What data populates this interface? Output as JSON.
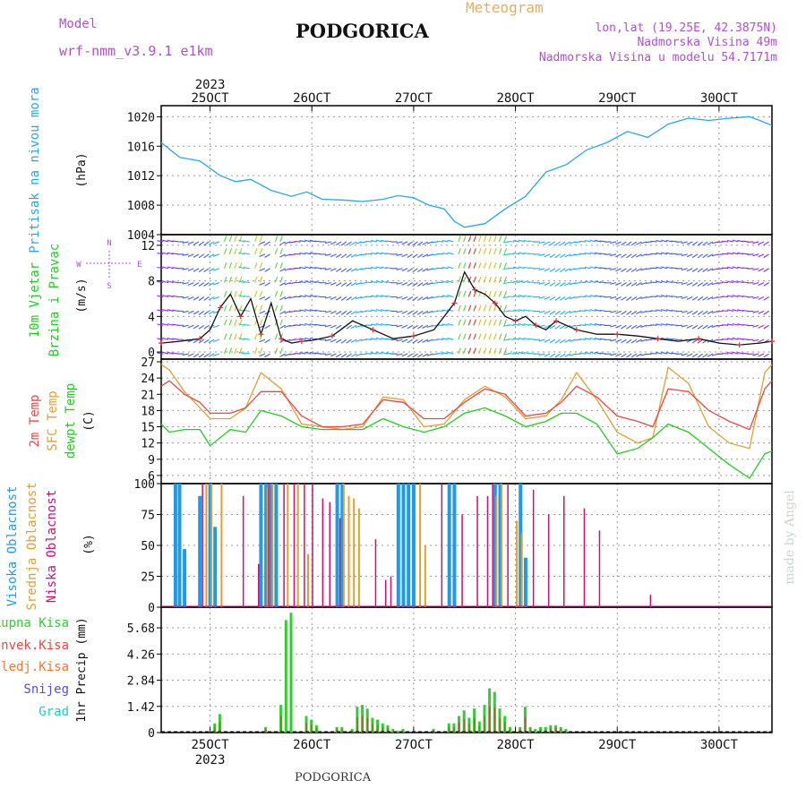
{
  "header": {
    "model_label": "Model",
    "model_name": "wrf-nmm_v3.9.1 e1km",
    "title": "PODGORICA",
    "meteogram_label": "Meteogram",
    "coords": "lon,lat (19.25E, 42.3875N)",
    "elevation": "Nadmorska Visina 49m",
    "model_elevation": "Nadmorska Visina u modelu 54.7171m",
    "footer_title": "PODGORICA",
    "credit": "made by Angel"
  },
  "colors": {
    "pressure": "#29a8e0",
    "temp2m": "#e84848",
    "sfc_temp": "#e0a030",
    "dewpt": "#22cc22",
    "high_cloud": "#1e9be8",
    "mid_cloud": "#e0a030",
    "low_cloud": "#c8127a",
    "total_precip": "#33cc33",
    "conv_precip": "#e84848",
    "frozen_precip": "#f07830",
    "snow": "#5050dd",
    "grad": "#22cccc",
    "header_purple": "#b050d0",
    "header_gold": "#e0b060"
  },
  "x_axis": {
    "top_year": "2023",
    "bottom_year": "2023",
    "ticks": [
      {
        "day": 25,
        "label": "25OCT"
      },
      {
        "day": 26,
        "label": "26OCT"
      },
      {
        "day": 27,
        "label": "27OCT"
      },
      {
        "day": 28,
        "label": "28OCT"
      },
      {
        "day": 29,
        "label": "29OCT"
      },
      {
        "day": 30,
        "label": "30OCT"
      }
    ],
    "range_days": [
      24.52,
      30.52
    ]
  },
  "chart_data": [
    {
      "type": "line",
      "name": "pressure",
      "ylabel_left": "Pritisak na nivou mora",
      "ylabel_unit": "(hPa)",
      "ylim": [
        1004,
        1021.5
      ],
      "yticks": [
        1004,
        1008,
        1012,
        1016,
        1020
      ],
      "grid": true,
      "series": [
        {
          "name": "pressure",
          "x": [
            24.52,
            24.7,
            24.9,
            25.1,
            25.25,
            25.4,
            25.6,
            25.8,
            25.95,
            26.1,
            26.3,
            26.5,
            26.7,
            26.85,
            27.0,
            27.15,
            27.3,
            27.4,
            27.5,
            27.7,
            27.9,
            28.1,
            28.3,
            28.5,
            28.7,
            28.9,
            29.1,
            29.3,
            29.5,
            29.7,
            29.9,
            30.1,
            30.3,
            30.4,
            30.52
          ],
          "values": [
            1016.5,
            1014.5,
            1014.0,
            1012.0,
            1011.2,
            1011.5,
            1010.0,
            1009.2,
            1009.8,
            1008.8,
            1008.7,
            1008.5,
            1008.8,
            1009.3,
            1009.0,
            1008.0,
            1007.5,
            1005.8,
            1005.0,
            1005.5,
            1007.5,
            1009.2,
            1012.5,
            1013.5,
            1015.5,
            1016.5,
            1018.0,
            1017.2,
            1019.0,
            1019.8,
            1019.5,
            1019.8,
            1020.0,
            1019.5,
            1018.8
          ]
        }
      ]
    },
    {
      "type": "line",
      "name": "wind",
      "ylabel_left": "10m Vjetar",
      "ylabel_left2": "Brzina i Pravac",
      "ylabel_unit": "(m/s)",
      "compass": {
        "north": "N",
        "south": "S",
        "west": "W",
        "east": "E"
      },
      "ylim": [
        -0.8,
        13.2
      ],
      "yticks": [
        0,
        4,
        8,
        12
      ],
      "grid": true,
      "series": [
        {
          "name": "wind speed",
          "x": [
            24.52,
            24.7,
            24.9,
            25.0,
            25.1,
            25.2,
            25.3,
            25.4,
            25.5,
            25.6,
            25.7,
            25.8,
            25.9,
            26.0,
            26.2,
            26.4,
            26.6,
            26.8,
            27.0,
            27.2,
            27.4,
            27.5,
            27.6,
            27.7,
            27.8,
            27.9,
            28.0,
            28.1,
            28.2,
            28.3,
            28.4,
            28.5,
            28.6,
            28.8,
            29.0,
            29.2,
            29.4,
            29.6,
            29.8,
            30.0,
            30.2,
            30.4,
            30.52
          ],
          "values": [
            1.0,
            1.2,
            1.5,
            2.5,
            5.0,
            6.5,
            4.0,
            6.0,
            2.0,
            5.5,
            1.5,
            1.0,
            1.2,
            1.3,
            1.8,
            3.5,
            2.5,
            1.5,
            1.8,
            2.5,
            5.5,
            9.0,
            7.0,
            6.5,
            5.5,
            4.0,
            3.5,
            4.0,
            3.0,
            2.5,
            3.5,
            3.0,
            2.5,
            2.0,
            2.0,
            1.8,
            1.5,
            1.2,
            1.5,
            1.0,
            0.8,
            1.0,
            1.2
          ]
        }
      ]
    },
    {
      "type": "line",
      "name": "temperature",
      "ylabel_left": "2m Temp",
      "ylabel_left2": "SFC Temp",
      "ylabel_left3": "dewpt Temp",
      "ylabel_unit": "(C)",
      "ylim": [
        4.5,
        27.5
      ],
      "yticks": [
        6,
        9,
        12,
        15,
        18,
        21,
        24,
        27
      ],
      "grid": true,
      "series": [
        {
          "name": "2m Temp",
          "x": [
            24.52,
            24.6,
            24.75,
            24.9,
            25.0,
            25.2,
            25.35,
            25.5,
            25.7,
            25.9,
            26.1,
            26.3,
            26.5,
            26.7,
            26.9,
            27.1,
            27.3,
            27.5,
            27.7,
            27.9,
            28.1,
            28.3,
            28.45,
            28.6,
            28.8,
            29.0,
            29.2,
            29.35,
            29.5,
            29.7,
            29.9,
            30.1,
            30.3,
            30.45,
            30.52
          ],
          "values": [
            22.5,
            23.5,
            21.0,
            19.5,
            17.5,
            17.5,
            18.5,
            21.5,
            21.5,
            17.0,
            15.0,
            15.0,
            15.5,
            20.0,
            19.5,
            16.5,
            16.5,
            19.5,
            22.0,
            21.0,
            17.0,
            17.5,
            19.5,
            22.5,
            20.5,
            17.0,
            16.0,
            15.0,
            22.0,
            21.5,
            18.0,
            16.0,
            14.5,
            22.0,
            23.5
          ]
        },
        {
          "name": "SFC Temp",
          "x": [
            24.52,
            24.6,
            24.75,
            24.9,
            25.0,
            25.2,
            25.35,
            25.5,
            25.7,
            25.9,
            26.1,
            26.3,
            26.5,
            26.7,
            26.9,
            27.1,
            27.3,
            27.5,
            27.7,
            27.9,
            28.1,
            28.3,
            28.45,
            28.6,
            28.8,
            29.0,
            29.2,
            29.35,
            29.5,
            29.7,
            29.9,
            30.1,
            30.3,
            30.45,
            30.52
          ],
          "values": [
            26.5,
            25.5,
            21.5,
            18.5,
            16.5,
            16.5,
            18.5,
            25.0,
            22.0,
            15.5,
            15.0,
            14.5,
            15.0,
            20.5,
            20.0,
            15.0,
            15.5,
            20.0,
            22.5,
            20.5,
            16.5,
            17.0,
            20.0,
            25.0,
            20.0,
            14.0,
            12.0,
            13.0,
            26.0,
            23.0,
            15.0,
            12.0,
            11.0,
            25.0,
            26.5
          ]
        },
        {
          "name": "dewpt Temp",
          "x": [
            24.52,
            24.6,
            24.75,
            24.9,
            25.0,
            25.2,
            25.35,
            25.5,
            25.7,
            25.9,
            26.1,
            26.3,
            26.5,
            26.7,
            26.9,
            27.1,
            27.3,
            27.5,
            27.7,
            27.9,
            28.1,
            28.3,
            28.45,
            28.6,
            28.8,
            29.0,
            29.2,
            29.35,
            29.5,
            29.7,
            29.9,
            30.1,
            30.3,
            30.45,
            30.52
          ],
          "values": [
            15.5,
            14.0,
            14.5,
            14.5,
            11.5,
            14.5,
            14.0,
            18.0,
            17.0,
            15.0,
            14.5,
            14.5,
            14.5,
            16.5,
            15.0,
            14.0,
            15.0,
            17.5,
            18.5,
            17.0,
            15.0,
            16.0,
            17.5,
            17.5,
            15.5,
            10.0,
            11.0,
            13.0,
            15.5,
            14.0,
            11.0,
            8.0,
            5.5,
            10.0,
            10.5
          ]
        }
      ]
    },
    {
      "type": "bar",
      "name": "cloud cover",
      "ylabel_left": "Visoka Oblacnost",
      "ylabel_left2": "Srednja Oblacnost",
      "ylabel_left3": "Niska Oblacnost",
      "ylabel_unit": "(%)",
      "ylim": [
        0,
        100
      ],
      "yticks": [
        0,
        25,
        50,
        75,
        100
      ],
      "grid": true,
      "series": [
        {
          "name": "Visoka Oblacnost",
          "x": [
            24.66,
            24.7,
            24.75,
            24.9,
            25.0,
            25.05,
            25.5,
            25.55,
            25.6,
            25.65,
            26.25,
            26.3,
            26.85,
            26.9,
            26.95,
            27.0,
            27.35,
            27.4,
            27.8,
            27.85,
            28.05,
            28.1
          ],
          "values": [
            100,
            100,
            47,
            90,
            100,
            65,
            100,
            100,
            100,
            100,
            100,
            100,
            100,
            100,
            100,
            100,
            100,
            100,
            100,
            100,
            100,
            40
          ]
        },
        {
          "name": "Srednja Oblacnost",
          "x": [
            24.95,
            25.0,
            25.1,
            25.55,
            25.6,
            25.75,
            25.85,
            25.95,
            26.3,
            26.35,
            26.4,
            26.45,
            27.05,
            27.1,
            27.8,
            27.85,
            28.0,
            28.05
          ],
          "values": [
            100,
            100,
            100,
            97,
            100,
            100,
            100,
            43,
            100,
            90,
            88,
            80,
            100,
            50,
            90,
            100,
            70,
            60
          ]
        },
        {
          "name": "Niska Oblacnost",
          "x": [
            24.9,
            25.3,
            25.45,
            25.55,
            25.7,
            25.8,
            25.9,
            25.98,
            26.08,
            26.15,
            26.25,
            26.6,
            26.7,
            26.75,
            27.25,
            27.45,
            27.6,
            27.7,
            27.75,
            27.9,
            28.15,
            28.3,
            28.45,
            28.65,
            28.8,
            29.3
          ],
          "values": [
            100,
            90,
            35,
            100,
            100,
            100,
            100,
            100,
            88,
            85,
            72,
            55,
            22,
            25,
            100,
            75,
            90,
            90,
            100,
            100,
            95,
            75,
            90,
            80,
            62,
            10
          ]
        }
      ]
    },
    {
      "type": "bar",
      "name": "precipitation",
      "legend": [
        "Ukupna Kisa",
        "Konvek.Kisa",
        "Zaledj.Kisa",
        "Snijeg",
        "Grad"
      ],
      "ylabel_unit": "1hr Precip (mm)",
      "ylim": [
        0,
        6.8
      ],
      "yticks": [
        0,
        1.42,
        2.84,
        4.26,
        5.68
      ],
      "ytick_labels": [
        "0",
        "1.42",
        "2.84",
        "4.26",
        "5.68"
      ],
      "grid": true,
      "series": [
        {
          "name": "Ukupna Kisa",
          "x": [
            25.05,
            25.1,
            25.55,
            25.7,
            25.75,
            25.8,
            25.95,
            26.0,
            26.05,
            26.25,
            26.3,
            26.4,
            26.45,
            26.5,
            26.55,
            26.6,
            26.65,
            26.7,
            26.75,
            26.8,
            26.85,
            26.9,
            27.2,
            27.35,
            27.4,
            27.45,
            27.5,
            27.55,
            27.6,
            27.65,
            27.7,
            27.75,
            27.8,
            27.85,
            27.9,
            27.95,
            28.05,
            28.1,
            28.15,
            28.2,
            28.25,
            28.3,
            28.35,
            28.4,
            28.45,
            28.5
          ],
          "values": [
            0.5,
            1.0,
            0.3,
            1.5,
            6.1,
            6.5,
            0.9,
            0.7,
            0.4,
            0.3,
            0.3,
            0.2,
            1.4,
            1.5,
            1.3,
            0.8,
            0.7,
            0.5,
            0.4,
            0.2,
            0.1,
            0.2,
            0.2,
            0.5,
            0.5,
            0.9,
            1.2,
            0.8,
            1.3,
            0.6,
            1.5,
            2.4,
            2.2,
            1.3,
            0.9,
            0.3,
            0.3,
            1.4,
            0.3,
            0.2,
            0.3,
            0.3,
            0.4,
            0.4,
            0.3,
            0.2
          ]
        }
      ]
    }
  ]
}
